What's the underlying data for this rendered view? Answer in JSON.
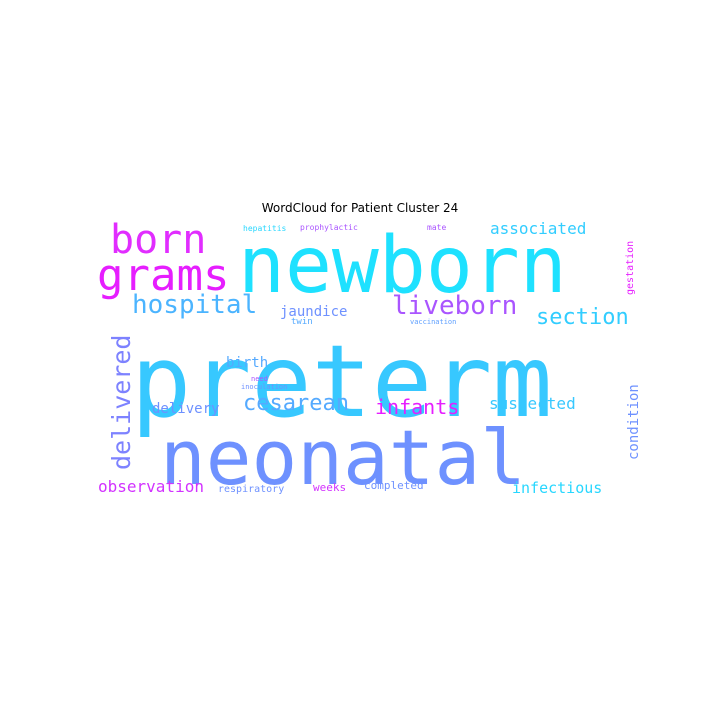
{
  "title": "WordCloud for Patient Cluster 24",
  "chart_data": {
    "type": "wordcloud",
    "title": "WordCloud for Patient Cluster 24",
    "colormap": [
      "#ff00ff",
      "#00ffff"
    ],
    "words": [
      {
        "text": "preterm",
        "weight": 1.0,
        "color": "#37c8ff",
        "orientation": "horizontal"
      },
      {
        "text": "newborn",
        "weight": 0.82,
        "color": "#1ee1ff",
        "orientation": "horizontal"
      },
      {
        "text": "neonatal",
        "weight": 0.78,
        "color": "#6e91ff",
        "orientation": "horizontal"
      },
      {
        "text": "grams",
        "weight": 0.45,
        "color": "#e61eff",
        "orientation": "horizontal"
      },
      {
        "text": "born",
        "weight": 0.43,
        "color": "#e12dff",
        "orientation": "horizontal"
      },
      {
        "text": "hospital",
        "weight": 0.28,
        "color": "#4bb4ff",
        "orientation": "horizontal"
      },
      {
        "text": "liveborn",
        "weight": 0.28,
        "color": "#aa55ff",
        "orientation": "horizontal"
      },
      {
        "text": "delivered",
        "weight": 0.26,
        "color": "#7d82ff",
        "orientation": "vertical"
      },
      {
        "text": "section",
        "weight": 0.24,
        "color": "#32cdff",
        "orientation": "horizontal"
      },
      {
        "text": "cesarean",
        "weight": 0.23,
        "color": "#55aaff",
        "orientation": "horizontal"
      },
      {
        "text": "infants",
        "weight": 0.21,
        "color": "#e61eff",
        "orientation": "horizontal"
      },
      {
        "text": "associated",
        "weight": 0.16,
        "color": "#32cdff",
        "orientation": "horizontal"
      },
      {
        "text": "suspected",
        "weight": 0.16,
        "color": "#37c8ff",
        "orientation": "horizontal"
      },
      {
        "text": "observation",
        "weight": 0.16,
        "color": "#d232ff",
        "orientation": "horizontal"
      },
      {
        "text": "infectious",
        "weight": 0.15,
        "color": "#28d7ff",
        "orientation": "horizontal"
      },
      {
        "text": "condition",
        "weight": 0.14,
        "color": "#6e91ff",
        "orientation": "vertical"
      },
      {
        "text": "jaundice",
        "weight": 0.13,
        "color": "#6e91ff",
        "orientation": "horizontal"
      },
      {
        "text": "birth",
        "weight": 0.13,
        "color": "#55aaff",
        "orientation": "horizontal"
      },
      {
        "text": "delivery",
        "weight": 0.13,
        "color": "#6e91ff",
        "orientation": "horizontal"
      },
      {
        "text": "weeks",
        "weight": 0.1,
        "color": "#d232ff",
        "orientation": "horizontal"
      },
      {
        "text": "completed",
        "weight": 0.1,
        "color": "#6e91ff",
        "orientation": "horizontal"
      },
      {
        "text": "respiratory",
        "weight": 0.09,
        "color": "#6e91ff",
        "orientation": "horizontal"
      },
      {
        "text": "gestation",
        "weight": 0.09,
        "color": "#e61eff",
        "orientation": "vertical"
      },
      {
        "text": "twin",
        "weight": 0.08,
        "color": "#55aaff",
        "orientation": "horizontal"
      },
      {
        "text": "hepatitis",
        "weight": 0.07,
        "color": "#28d7ff",
        "orientation": "horizontal"
      },
      {
        "text": "prophylactic",
        "weight": 0.07,
        "color": "#aa55ff",
        "orientation": "horizontal"
      },
      {
        "text": "mate",
        "weight": 0.07,
        "color": "#aa55ff",
        "orientation": "horizontal"
      },
      {
        "text": "vaccination",
        "weight": 0.06,
        "color": "#5fa0ff",
        "orientation": "horizontal"
      },
      {
        "text": "need",
        "weight": 0.06,
        "color": "#aa55ff",
        "orientation": "horizontal"
      },
      {
        "text": "inoculation",
        "weight": 0.06,
        "color": "#6e91ff",
        "orientation": "horizontal"
      }
    ]
  }
}
